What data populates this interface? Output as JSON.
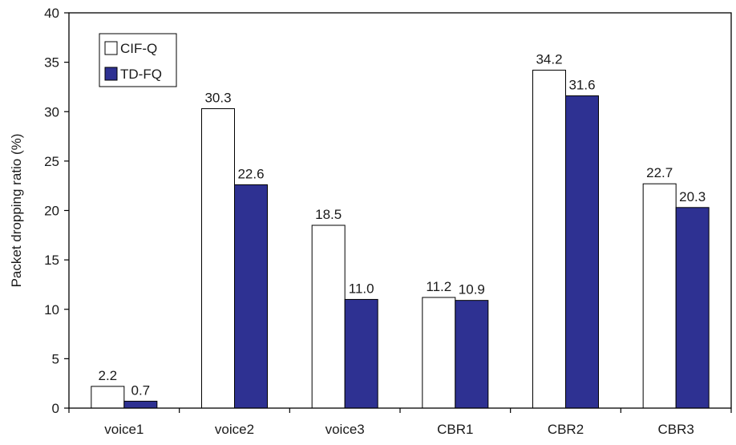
{
  "chart_data": {
    "type": "bar",
    "title": "",
    "xlabel": "",
    "ylabel": "Packet dropping ratio (%)",
    "ylim": [
      0,
      40
    ],
    "yticks": [
      0,
      5,
      10,
      15,
      20,
      25,
      30,
      35,
      40
    ],
    "categories": [
      "voice1",
      "voice2",
      "voice3",
      "CBR1",
      "CBR2",
      "CBR3"
    ],
    "series": [
      {
        "name": "CIF-Q",
        "color": "#ffffff",
        "values": [
          2.2,
          30.3,
          18.5,
          11.2,
          34.2,
          22.7
        ],
        "labels": [
          "2.2",
          "30.3",
          "18.5",
          "11.2",
          "34.2",
          "22.7"
        ]
      },
      {
        "name": "TD-FQ",
        "color": "#2e3192",
        "values": [
          0.7,
          22.6,
          11.0,
          10.9,
          31.6,
          20.3
        ],
        "labels": [
          "0.7",
          "22.6",
          "11.0",
          "10.9",
          "31.6",
          "20.3"
        ]
      }
    ],
    "grid": false,
    "legend_position": "top-left"
  }
}
